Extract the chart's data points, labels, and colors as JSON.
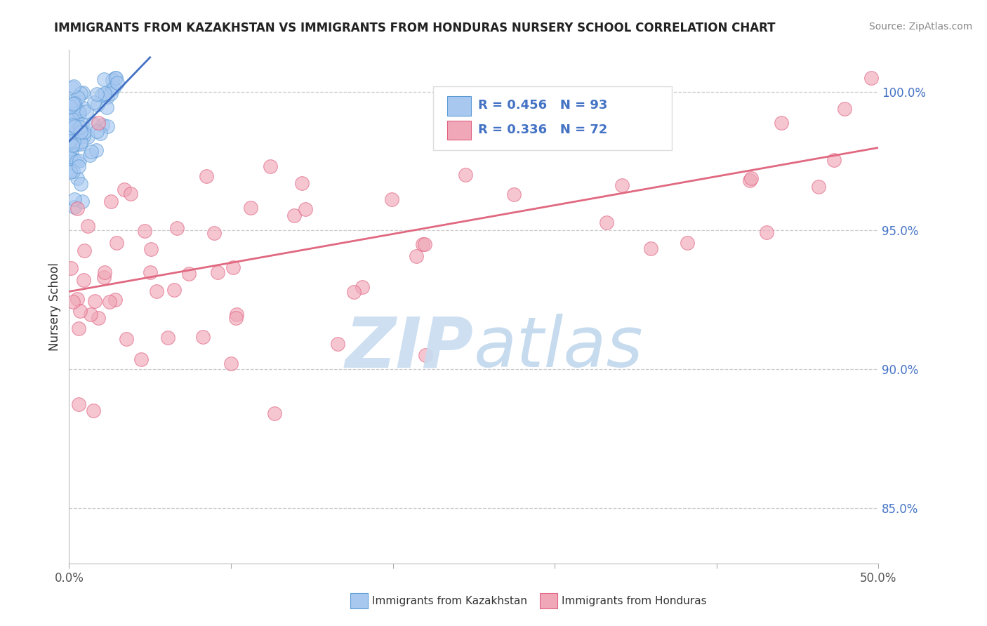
{
  "title": "IMMIGRANTS FROM KAZAKHSTAN VS IMMIGRANTS FROM HONDURAS NURSERY SCHOOL CORRELATION CHART",
  "source": "Source: ZipAtlas.com",
  "ylabel": "Nursery School",
  "ytick_values": [
    85.0,
    90.0,
    95.0,
    100.0
  ],
  "xmin": 0.0,
  "xmax": 50.0,
  "ymin": 83.0,
  "ymax": 101.5,
  "R_kaz": 0.456,
  "N_kaz": 93,
  "R_hon": 0.336,
  "N_hon": 72,
  "color_kaz": "#A8C8F0",
  "color_hon": "#F0A8B8",
  "edge_kaz": "#5B9BD5",
  "edge_hon": "#E06080",
  "line_color_kaz": "#4472C4",
  "line_color_hon": "#E06880",
  "watermark_zip_color": "#C8DCF0",
  "watermark_atlas_color": "#B0CCE8"
}
